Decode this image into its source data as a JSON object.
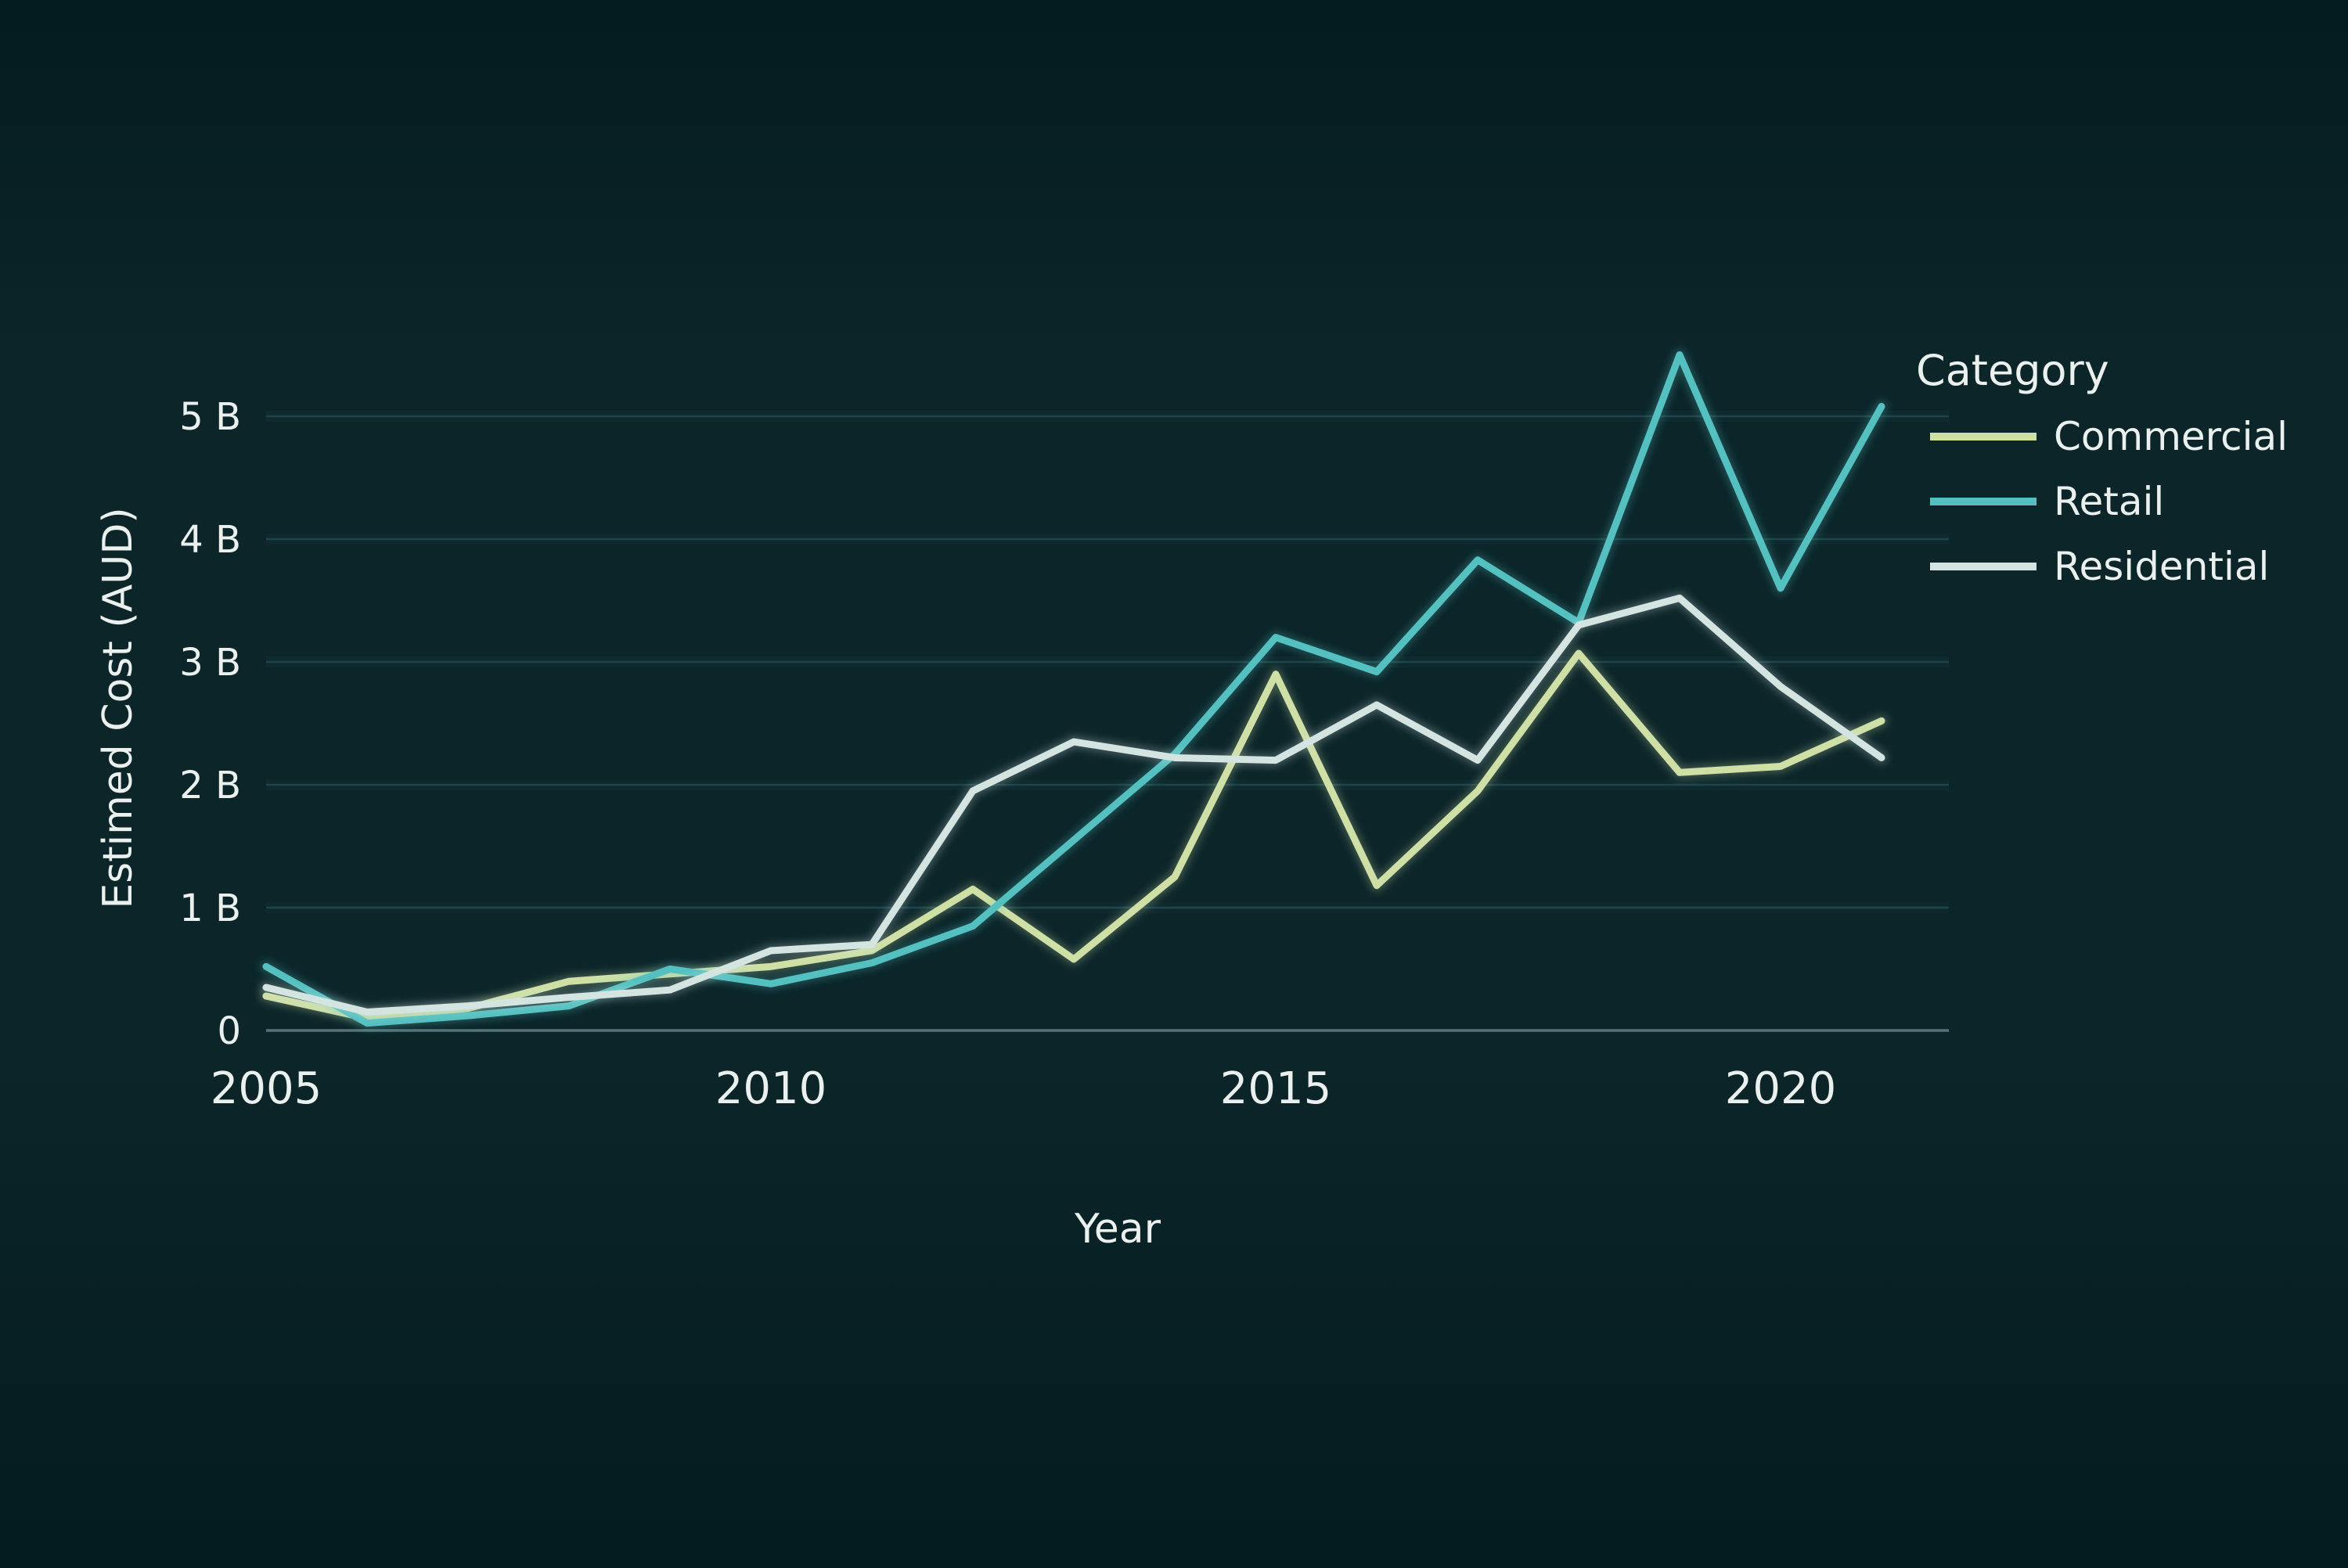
{
  "figure": {
    "background_center": "#0b2529",
    "background_edge": "#041b1f",
    "text_color": "#eaf0ed",
    "grid_color": "#1d4549",
    "grid_band_color": "#2f5b5e",
    "axis_line_color": "#5a7c80"
  },
  "chart_data": {
    "type": "line",
    "title": "",
    "xlabel": "Year",
    "ylabel": "Estimed Cost (AUD)",
    "legend_title": "Category",
    "legend_position": "right",
    "grid": true,
    "x": [
      2005,
      2006,
      2007,
      2008,
      2009,
      2010,
      2011,
      2012,
      2013,
      2014,
      2015,
      2016,
      2017,
      2018,
      2019,
      2020,
      2021
    ],
    "x_tick_values": [
      2005,
      2010,
      2015,
      2020
    ],
    "x_tick_labels": [
      "2005",
      "2010",
      "2015",
      "2020"
    ],
    "y_tick_values": [
      0,
      1,
      2,
      3,
      4,
      5
    ],
    "y_tick_labels": [
      "0",
      "1 B",
      "2 B",
      "3 B",
      "4 B",
      "5 B"
    ],
    "xlim": [
      2005,
      2021
    ],
    "ylim": [
      0,
      5.7
    ],
    "series": [
      {
        "name": "Commercial",
        "color": "#cfe0a6",
        "values": [
          0.28,
          0.1,
          0.18,
          0.4,
          0.46,
          0.52,
          0.65,
          1.15,
          0.58,
          1.25,
          2.9,
          1.18,
          1.95,
          3.07,
          2.1,
          2.15,
          2.52
        ]
      },
      {
        "name": "Retail",
        "color": "#54c0c0",
        "values": [
          0.52,
          0.06,
          0.12,
          0.2,
          0.5,
          0.38,
          0.55,
          0.85,
          1.55,
          2.25,
          3.2,
          2.92,
          3.83,
          3.32,
          5.5,
          3.6,
          5.08
        ]
      },
      {
        "name": "Residential",
        "color": "#d3e4e1",
        "values": [
          0.35,
          0.15,
          0.2,
          0.27,
          0.33,
          0.65,
          0.7,
          1.95,
          2.35,
          2.22,
          2.2,
          2.65,
          2.2,
          3.3,
          3.52,
          2.8,
          2.22
        ]
      }
    ]
  }
}
